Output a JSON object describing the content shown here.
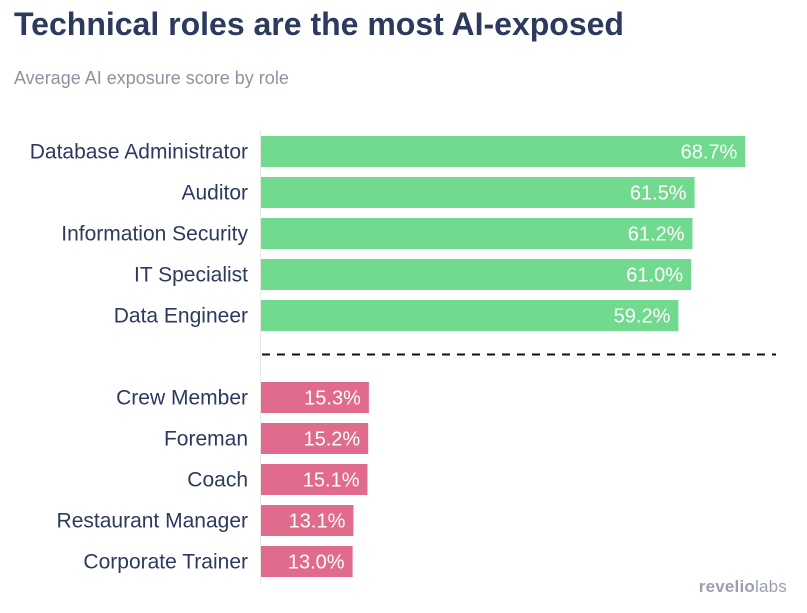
{
  "chart_data": {
    "type": "bar",
    "orientation": "horizontal",
    "title": "Technical roles are the most AI-exposed",
    "subtitle": "Average AI exposure score by role",
    "groups": [
      {
        "name": "top",
        "color": "#72da8f",
        "categories": [
          "Database Administrator",
          "Auditor",
          "Information Security",
          "IT Specialist",
          "Data Engineer"
        ],
        "values": [
          68.7,
          61.5,
          61.2,
          61.0,
          59.2
        ],
        "labels": [
          "68.7%",
          "61.5%",
          "61.2%",
          "61.0%",
          "59.2%"
        ]
      },
      {
        "name": "bottom",
        "color": "#e06b8c",
        "categories": [
          "Crew Member",
          "Foreman",
          "Coach",
          "Restaurant Manager",
          "Corporate Trainer"
        ],
        "values": [
          15.3,
          15.2,
          15.1,
          13.1,
          13.0
        ],
        "labels": [
          "15.3%",
          "15.2%",
          "15.1%",
          "13.1%",
          "13.0%"
        ]
      }
    ],
    "xlim": [
      0,
      72
    ],
    "grid": false,
    "separator": "dashed"
  },
  "brand": {
    "part1": "revelio",
    "part2": "labs"
  }
}
